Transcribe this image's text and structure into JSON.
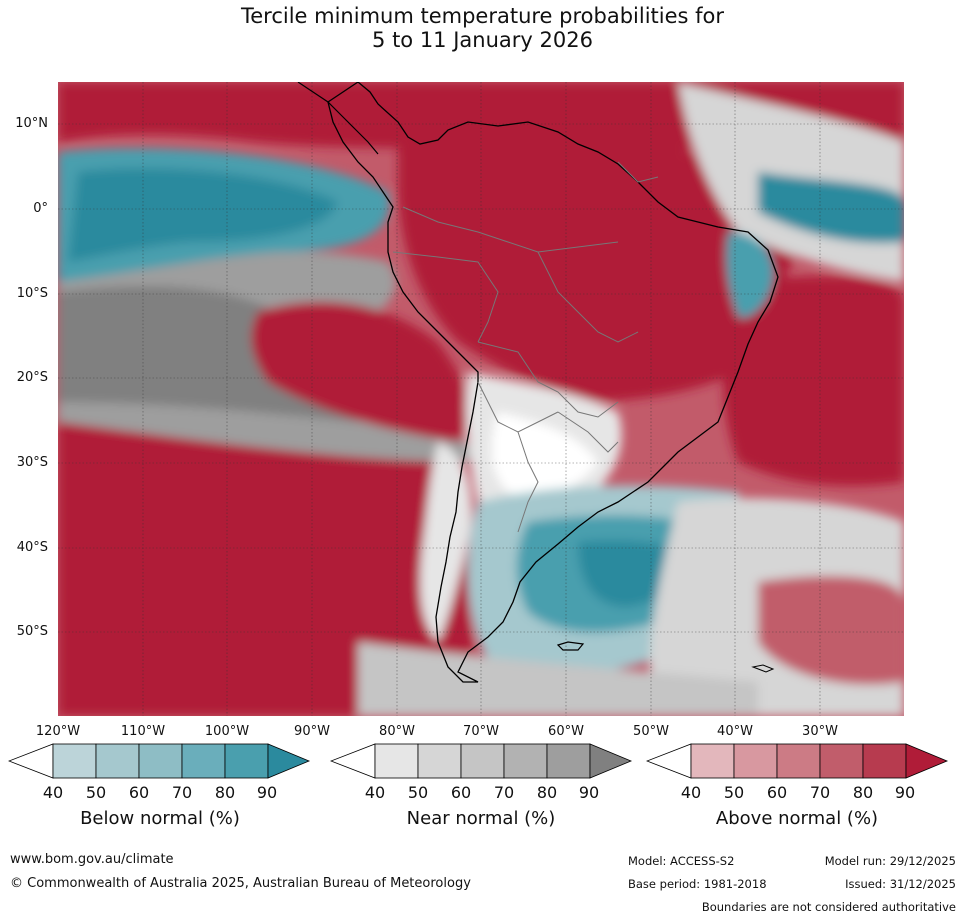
{
  "title_line1": "Tercile minimum temperature probabilities for",
  "title_line2": "5 to 11 January 2026",
  "lat_labels": [
    "10°N",
    "0°",
    "10°S",
    "20°S",
    "30°S",
    "40°S",
    "50°S"
  ],
  "lon_labels": [
    "120°W",
    "110°W",
    "100°W",
    "90°W",
    "80°W",
    "70°W",
    "60°W",
    "50°W",
    "40°W",
    "30°W"
  ],
  "colorbars": [
    {
      "label": "Below normal (%)",
      "ticks": [
        "40",
        "50",
        "60",
        "70",
        "80",
        "90"
      ],
      "colors": [
        "#ffffff",
        "#bcd4d9",
        "#a5c8ce",
        "#8ebdc5",
        "#6aaebb",
        "#4a9fae",
        "#2b8a9e"
      ]
    },
    {
      "label": "Near normal (%)",
      "ticks": [
        "40",
        "50",
        "60",
        "70",
        "80",
        "90"
      ],
      "colors": [
        "#ffffff",
        "#e6e6e6",
        "#d6d6d6",
        "#c5c5c5",
        "#b2b2b2",
        "#9e9e9e",
        "#808080"
      ]
    },
    {
      "label": "Above normal (%)",
      "ticks": [
        "40",
        "50",
        "60",
        "70",
        "80",
        "90"
      ],
      "colors": [
        "#ffffff",
        "#e3b7bc",
        "#d898a0",
        "#cc7b85",
        "#c15d6b",
        "#b73b4f",
        "#b01c38"
      ]
    }
  ],
  "footer": {
    "website": "www.bom.gov.au/climate",
    "copyright": "© Commonwealth of Australia 2025, Australian Bureau of Meteorology",
    "model": "Model: ACCESS-S2",
    "base_period": "Base period: 1981-2018",
    "model_run": "Model run: 29/12/2025",
    "issued": "Issued: 31/12/2025",
    "boundaries": "Boundaries are not considered authoritative"
  }
}
